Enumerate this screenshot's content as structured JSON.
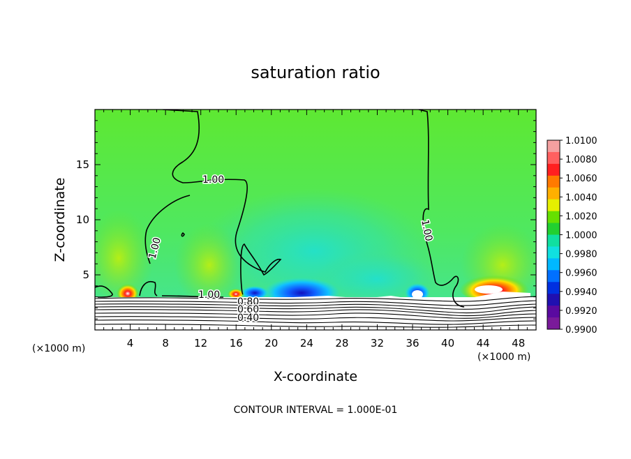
{
  "chart_data": {
    "type": "heatmap",
    "title": "saturation ratio",
    "xlabel": "X-coordinate",
    "ylabel": "Z-coordinate",
    "x_unit_left": "(×1000 m)",
    "x_unit_right": "(×1000 m)",
    "footer": "CONTOUR INTERVAL = 1.000E-01",
    "xlim": [
      0,
      50
    ],
    "ylim": [
      0,
      20
    ],
    "x_ticks": [
      4,
      8,
      12,
      16,
      20,
      24,
      28,
      32,
      36,
      40,
      44,
      48
    ],
    "y_ticks": [
      5,
      10,
      15
    ],
    "colorbar": {
      "levels": [
        "1.0100",
        "1.0080",
        "1.0060",
        "1.0040",
        "1.0020",
        "1.0000",
        "0.9980",
        "0.9960",
        "0.9940",
        "0.9920",
        "0.9900"
      ],
      "colors": [
        "#f4a0a0",
        "#ff6060",
        "#ff2020",
        "#ff7a00",
        "#ffb000",
        "#e6f000",
        "#66e000",
        "#22d030",
        "#10e0a0",
        "#10e0e0",
        "#00b8ff",
        "#0070ff",
        "#0030e0",
        "#2010b0",
        "#5a0aa0",
        "#7a1a9a"
      ]
    },
    "contour_labels": [
      "1.00",
      "1.00",
      "1.00",
      "1.00",
      "0.80",
      "0.60",
      "0.40"
    ],
    "field": {
      "background": 1.0,
      "features": [
        {
          "x": 3.5,
          "z": 3.5,
          "value": 1.008
        },
        {
          "x": 13.5,
          "z": 3.4,
          "value": 1.006
        },
        {
          "x": 23.0,
          "z": 3.6,
          "value": 0.993
        },
        {
          "x": 36.5,
          "z": 3.5,
          "value": 0.995
        },
        {
          "x": 45.0,
          "z": 3.8,
          "value": 1.006
        },
        {
          "x": 28.0,
          "z": 9.0,
          "value": 0.9985
        }
      ]
    }
  }
}
